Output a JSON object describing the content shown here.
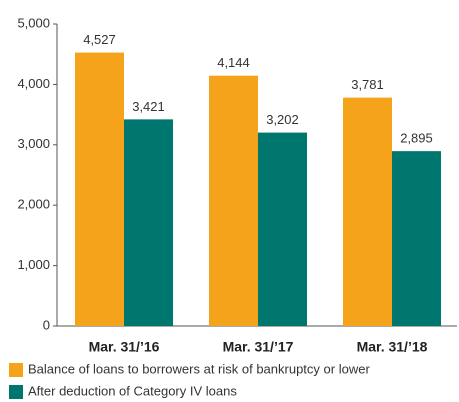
{
  "chart_data": {
    "type": "bar",
    "categories": [
      "Mar. 31/’16",
      "Mar. 31/’17",
      "Mar. 31/’18"
    ],
    "series": [
      {
        "name": "Balance of loans to borrowers at risk of bankruptcy or lower",
        "color": "#f5a31a",
        "values": [
          4527,
          4144,
          3781
        ],
        "value_labels": [
          "4,527",
          "4,144",
          "3,781"
        ]
      },
      {
        "name": "After deduction of Category IV loans",
        "color": "#00776e",
        "values": [
          3421,
          3202,
          2895
        ],
        "value_labels": [
          "3,421",
          "3,202",
          "2,895"
        ]
      }
    ],
    "ylim": [
      0,
      5000
    ],
    "yticks": [
      0,
      {
        "value": 1000,
        "label": "1,000"
      },
      {
        "value": 2000,
        "label": "2,000"
      },
      {
        "value": 3000,
        "label": "3,000"
      },
      {
        "value": 4000,
        "label": "4,000"
      },
      {
        "value": 5000,
        "label": "5,000"
      }
    ],
    "grid": false,
    "legend": "bottom"
  }
}
